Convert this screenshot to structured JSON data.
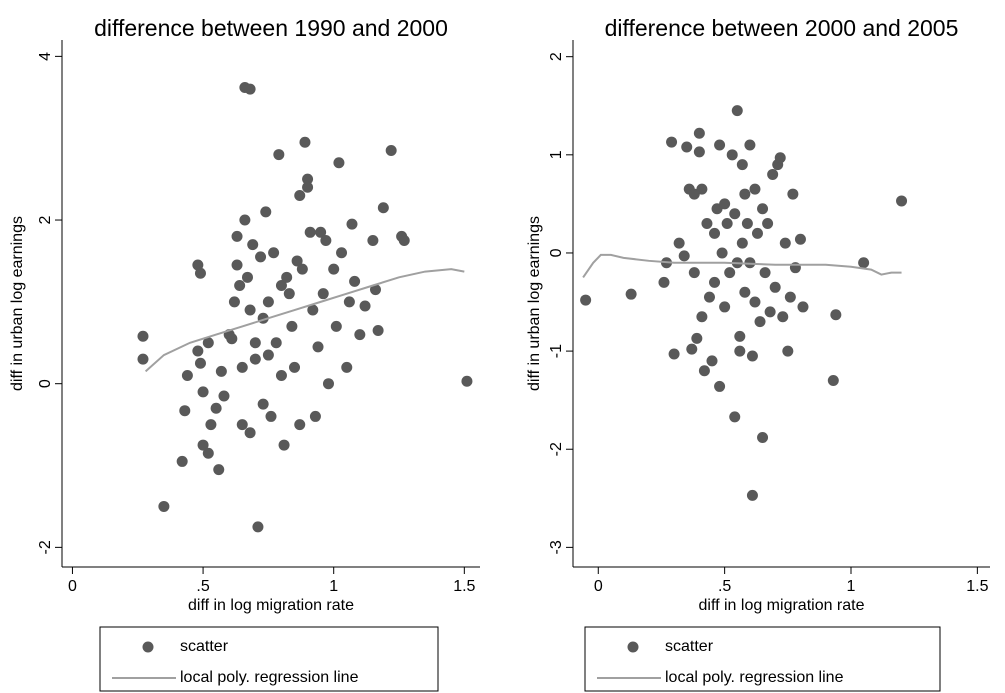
{
  "chart_data": [
    {
      "type": "scatter",
      "title": "difference between 1990 and 2000",
      "xlabel": "diff in log migration rate",
      "ylabel": "diff in urban log earnings",
      "xlim": [
        -0.04,
        1.56
      ],
      "ylim": [
        -2.24,
        4.2
      ],
      "xticks": [
        0,
        {
          "value": 0.5,
          "label": ".5"
        },
        1,
        1.5
      ],
      "yticks": [
        -2,
        0,
        2,
        4
      ],
      "series": [
        {
          "name": "scatter",
          "kind": "scatter",
          "color": "#595959",
          "x": [
            0.27,
            0.27,
            0.35,
            0.42,
            0.43,
            0.44,
            0.48,
            0.49,
            0.48,
            0.49,
            0.5,
            0.5,
            0.52,
            0.52,
            0.53,
            0.55,
            0.56,
            0.57,
            0.58,
            0.6,
            0.61,
            0.62,
            0.63,
            0.63,
            0.64,
            0.65,
            0.65,
            0.66,
            0.68,
            0.66,
            0.67,
            0.68,
            0.68,
            0.69,
            0.7,
            0.7,
            0.71,
            0.72,
            0.73,
            0.73,
            0.74,
            0.75,
            0.75,
            0.76,
            0.77,
            0.78,
            0.79,
            0.8,
            0.8,
            0.81,
            0.82,
            0.83,
            0.84,
            0.85,
            0.86,
            0.87,
            0.87,
            0.88,
            0.89,
            0.9,
            0.9,
            0.91,
            0.92,
            0.93,
            0.94,
            0.95,
            0.96,
            0.97,
            0.98,
            1.0,
            1.01,
            1.02,
            1.03,
            1.05,
            1.06,
            1.07,
            1.08,
            1.1,
            1.12,
            1.15,
            1.16,
            1.17,
            1.19,
            1.22,
            1.26,
            1.27,
            1.51
          ],
          "values": [
            0.58,
            0.3,
            -1.5,
            -0.95,
            -0.33,
            0.1,
            1.45,
            1.35,
            0.4,
            0.25,
            -0.75,
            -0.1,
            -0.85,
            0.5,
            -0.5,
            -0.3,
            -1.05,
            0.15,
            -0.15,
            0.6,
            0.55,
            1.0,
            1.45,
            1.8,
            1.2,
            -0.5,
            0.2,
            3.62,
            3.6,
            2.0,
            1.3,
            0.9,
            -0.6,
            1.7,
            0.5,
            0.3,
            -1.75,
            1.55,
            0.8,
            -0.25,
            2.1,
            1.0,
            0.35,
            -0.4,
            1.6,
            0.5,
            2.8,
            1.2,
            0.1,
            -0.75,
            1.3,
            1.1,
            0.7,
            0.2,
            1.5,
            -0.5,
            2.3,
            1.4,
            2.95,
            2.5,
            2.4,
            1.85,
            0.9,
            -0.4,
            0.45,
            1.85,
            1.1,
            1.75,
            0.0,
            1.4,
            0.7,
            2.7,
            1.6,
            0.2,
            1.0,
            1.95,
            1.25,
            0.6,
            0.95,
            1.75,
            1.15,
            0.65,
            2.15,
            2.85,
            1.8,
            1.75,
            0.03
          ]
        },
        {
          "name": "local poly. regression line",
          "kind": "line",
          "color": "#a0a0a0",
          "x": [
            0.28,
            0.35,
            0.45,
            0.55,
            0.65,
            0.75,
            0.85,
            0.95,
            1.05,
            1.15,
            1.25,
            1.35,
            1.45,
            1.5
          ],
          "values": [
            0.15,
            0.35,
            0.5,
            0.6,
            0.7,
            0.8,
            0.9,
            1.0,
            1.1,
            1.2,
            1.3,
            1.37,
            1.4,
            1.37
          ]
        }
      ]
    },
    {
      "type": "scatter",
      "title": "difference between 2000 and 2005",
      "xlabel": "diff in log migration rate",
      "ylabel": "diff in urban log earnings",
      "xlim": [
        -0.1,
        1.55
      ],
      "ylim": [
        -3.2,
        2.17
      ],
      "xticks": [
        0,
        {
          "value": 0.5,
          "label": ".5"
        },
        1,
        1.5
      ],
      "yticks": [
        -3,
        -2,
        -1,
        0,
        1,
        2
      ],
      "series": [
        {
          "name": "scatter",
          "kind": "scatter",
          "color": "#595959",
          "x": [
            -0.05,
            0.13,
            0.26,
            0.27,
            0.29,
            0.3,
            0.32,
            0.34,
            0.35,
            0.36,
            0.37,
            0.38,
            0.38,
            0.39,
            0.4,
            0.4,
            0.41,
            0.41,
            0.42,
            0.43,
            0.44,
            0.45,
            0.46,
            0.46,
            0.47,
            0.48,
            0.48,
            0.49,
            0.5,
            0.5,
            0.51,
            0.52,
            0.53,
            0.54,
            0.54,
            0.55,
            0.55,
            0.56,
            0.56,
            0.57,
            0.57,
            0.58,
            0.58,
            0.59,
            0.6,
            0.6,
            0.61,
            0.61,
            0.62,
            0.62,
            0.63,
            0.64,
            0.65,
            0.65,
            0.66,
            0.67,
            0.68,
            0.69,
            0.7,
            0.71,
            0.72,
            0.73,
            0.74,
            0.75,
            0.76,
            0.77,
            0.78,
            0.8,
            0.81,
            0.93,
            0.94,
            1.05,
            1.2
          ],
          "values": [
            -0.48,
            -0.42,
            -0.3,
            -0.1,
            1.13,
            -1.03,
            0.1,
            -0.03,
            1.08,
            0.65,
            -0.98,
            0.6,
            -0.2,
            -0.87,
            1.22,
            1.03,
            0.65,
            -0.65,
            -1.2,
            0.3,
            -0.45,
            -1.1,
            0.2,
            -0.3,
            0.45,
            1.1,
            -1.36,
            0.0,
            -0.55,
            0.5,
            0.3,
            -0.2,
            1.0,
            0.4,
            -1.67,
            1.45,
            -0.1,
            -0.85,
            -1.0,
            0.1,
            0.9,
            0.6,
            -0.4,
            0.3,
            -0.1,
            1.1,
            -2.47,
            -1.05,
            0.65,
            -0.5,
            0.2,
            -0.7,
            -1.88,
            0.45,
            -0.2,
            0.3,
            -0.6,
            0.8,
            -0.35,
            0.9,
            0.97,
            -0.65,
            0.1,
            -1.0,
            -0.45,
            0.6,
            -0.15,
            0.14,
            -0.55,
            -1.3,
            -0.63,
            -0.1,
            0.53
          ]
        },
        {
          "name": "local poly. regression line",
          "kind": "line",
          "color": "#a0a0a0",
          "x": [
            -0.06,
            -0.02,
            0.01,
            0.05,
            0.1,
            0.2,
            0.3,
            0.5,
            0.7,
            0.9,
            1.0,
            1.08,
            1.12,
            1.16,
            1.2
          ],
          "values": [
            -0.25,
            -0.1,
            -0.02,
            -0.02,
            -0.05,
            -0.08,
            -0.1,
            -0.1,
            -0.12,
            -0.12,
            -0.14,
            -0.17,
            -0.22,
            -0.2,
            -0.2
          ]
        }
      ]
    }
  ]
}
